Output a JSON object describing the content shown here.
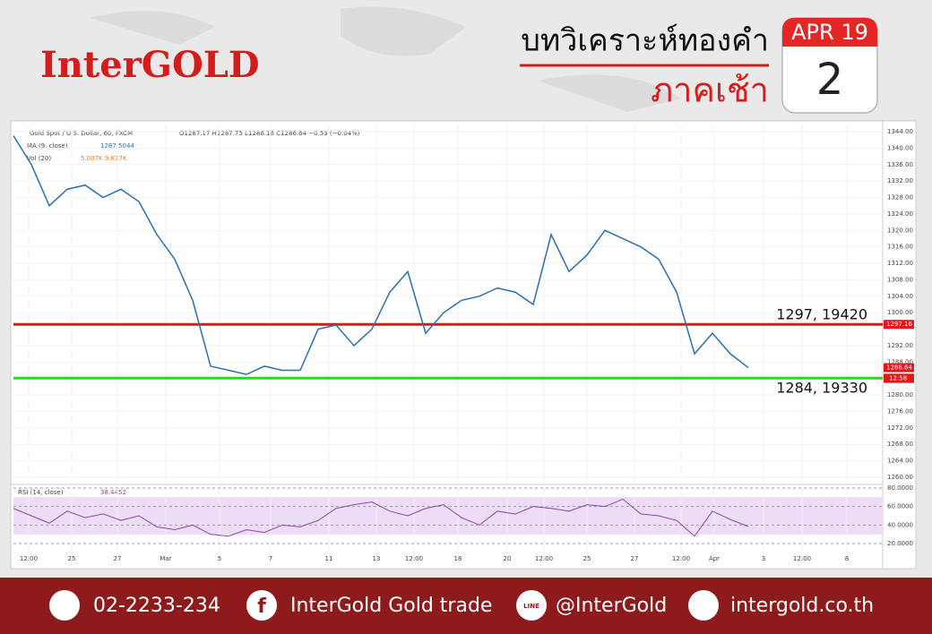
{
  "header": {
    "brand": "InterGOLD",
    "title": "บทวิเคราะห์ทองคำ",
    "session": "ภาคเช้า",
    "calendar_month": "APR 19",
    "calendar_day": "2"
  },
  "footer": {
    "phone": "02-2233-234",
    "facebook": "InterGold Gold trade",
    "line_icon": "LINE",
    "line": "@InterGold",
    "web": "intergold.co.th"
  },
  "chart_data": [
    {
      "type": "line",
      "title": "Gold Spot / U.S. Dollar, 60, FXCM",
      "ohlc": "O1287.17 H1287.75 L1286.16 C1286.64 −0.53 (−0.04%)",
      "ma_label": "MA (9, close)",
      "ma_value": "1287.5044",
      "vol_label": "Vol (20)",
      "vol_values": "5.007K 9.817K",
      "countdown": "12:58",
      "x": [
        0,
        2,
        4,
        6,
        8,
        10,
        12,
        14,
        16,
        18,
        20,
        22,
        24,
        26,
        28,
        30,
        32,
        34,
        36,
        38,
        40,
        42,
        44,
        46,
        48,
        50,
        52,
        54,
        56,
        58,
        60,
        62,
        64,
        66,
        68,
        70,
        72,
        74,
        76,
        78,
        80,
        82
      ],
      "series": [
        {
          "name": "Gold Spot",
          "color": "#2a6fb0",
          "values": [
            1343,
            1336,
            1326,
            1330,
            1331,
            1328,
            1330,
            1327,
            1319,
            1313,
            1303,
            1287,
            1286,
            1285,
            1287,
            1286,
            1286,
            1296,
            1297,
            1292,
            1296,
            1305,
            1310,
            1295,
            1300,
            1303,
            1304,
            1306,
            1305,
            1302,
            1319,
            1310,
            1314,
            1320,
            1318,
            1316,
            1313,
            1305,
            1290,
            1295,
            1290,
            1286.64
          ]
        }
      ],
      "levels": [
        {
          "value": 1297.16,
          "label": "1297, 19420",
          "color": "#e0161b"
        },
        {
          "value": 1284.11,
          "label": "1284, 19330",
          "color": "#22dd22"
        }
      ],
      "xlim": [
        0,
        97
      ],
      "ylim": [
        1260,
        1344
      ],
      "xticks": [
        {
          "value": 1.7,
          "label": "12:00"
        },
        {
          "value": 6.5,
          "label": "25"
        },
        {
          "value": 11.6,
          "label": "27"
        },
        {
          "value": 17,
          "label": "Mar"
        },
        {
          "value": 23,
          "label": "5"
        },
        {
          "value": 28.7,
          "label": "7"
        },
        {
          "value": 35.2,
          "label": "11"
        },
        {
          "value": 40.5,
          "label": "13"
        },
        {
          "value": 44.7,
          "label": "12:00"
        },
        {
          "value": 49.6,
          "label": "18"
        },
        {
          "value": 55.1,
          "label": "20"
        },
        {
          "value": 59.2,
          "label": "12:00"
        },
        {
          "value": 64,
          "label": "25"
        },
        {
          "value": 69.3,
          "label": "27"
        },
        {
          "value": 74.5,
          "label": "12:00"
        },
        {
          "value": 78.2,
          "label": "Apr"
        },
        {
          "value": 83.7,
          "label": "3"
        },
        {
          "value": 88,
          "label": "12:00"
        },
        {
          "value": 93,
          "label": "8"
        }
      ],
      "yticks": [
        {
          "value": 1260,
          "label": "1260.00"
        },
        {
          "value": 1264,
          "label": "1264.00"
        },
        {
          "value": 1268,
          "label": "1268.00"
        },
        {
          "value": 1272,
          "label": "1272.00"
        },
        {
          "value": 1276,
          "label": "1276.00"
        },
        {
          "value": 1280,
          "label": "1280.00"
        },
        {
          "value": 1288,
          "label": "1288.00"
        },
        {
          "value": 1292,
          "label": "1292.00"
        },
        {
          "value": 1300,
          "label": "1300.00"
        },
        {
          "value": 1304,
          "label": "1304.00"
        },
        {
          "value": 1308,
          "label": "1308.00"
        },
        {
          "value": 1312,
          "label": "1312.00"
        },
        {
          "value": 1316,
          "label": "1316.00"
        },
        {
          "value": 1320,
          "label": "1320.00"
        },
        {
          "value": 1324,
          "label": "1324.00"
        },
        {
          "value": 1328,
          "label": "1328.00"
        },
        {
          "value": 1332,
          "label": "1332.00"
        },
        {
          "value": 1336,
          "label": "1336.00"
        },
        {
          "value": 1340,
          "label": "1340.00"
        },
        {
          "value": 1344,
          "label": "1344.00"
        }
      ],
      "grid": true
    },
    {
      "type": "line",
      "title": "RSI (14, close)",
      "value": "38.4452",
      "x": [
        0,
        2,
        4,
        6,
        8,
        10,
        12,
        14,
        16,
        18,
        20,
        22,
        24,
        26,
        28,
        30,
        32,
        34,
        36,
        38,
        40,
        42,
        44,
        46,
        48,
        50,
        52,
        54,
        56,
        58,
        60,
        62,
        64,
        66,
        68,
        70,
        72,
        74,
        76,
        78,
        80,
        82
      ],
      "series": [
        {
          "name": "RSI",
          "color": "#8e44ad",
          "values": [
            58,
            50,
            42,
            55,
            48,
            52,
            45,
            50,
            38,
            35,
            40,
            30,
            28,
            35,
            32,
            40,
            38,
            45,
            58,
            62,
            65,
            55,
            50,
            58,
            62,
            48,
            40,
            55,
            52,
            60,
            58,
            55,
            62,
            60,
            68,
            52,
            50,
            45,
            28,
            55,
            46,
            38.4
          ]
        }
      ],
      "xlim": [
        0,
        97
      ],
      "ylim": [
        20,
        80
      ],
      "yticks": [
        {
          "value": 20,
          "label": "20.0000"
        },
        {
          "value": 40,
          "label": "40.0000"
        },
        {
          "value": 60,
          "label": "60.0000"
        },
        {
          "value": 80,
          "label": "80.0000"
        }
      ],
      "grid": true
    }
  ]
}
